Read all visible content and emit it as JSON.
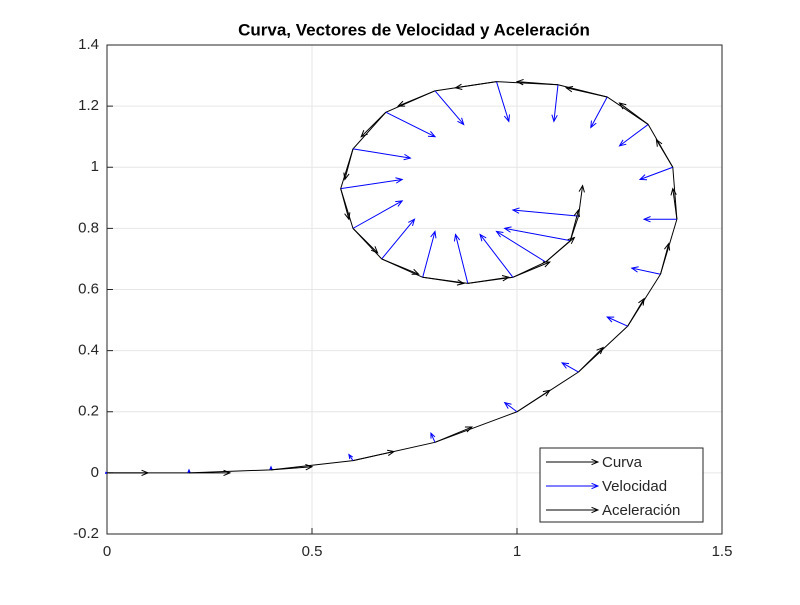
{
  "chart_data": {
    "type": "quiver",
    "title": "Curva, Vectores de Velocidad y Aceleración",
    "x": [
      0,
      0.2,
      0.4,
      0.6,
      0.8,
      1.0,
      1.15,
      1.27,
      1.35,
      1.39,
      1.38,
      1.32,
      1.22,
      1.1,
      0.95,
      0.8,
      0.68,
      0.6,
      0.57,
      0.6,
      0.67,
      0.77,
      0.88,
      0.99,
      1.07,
      1.13,
      1.15
    ],
    "y": [
      0,
      0.0,
      0.01,
      0.04,
      0.1,
      0.2,
      0.33,
      0.48,
      0.65,
      0.83,
      1.0,
      1.14,
      1.23,
      1.27,
      1.28,
      1.25,
      1.18,
      1.06,
      0.93,
      0.8,
      0.7,
      0.64,
      0.62,
      0.64,
      0.69,
      0.76,
      0.84
    ],
    "series": [
      {
        "name": "Curva",
        "color": "#000000"
      },
      {
        "name": "Velocidad",
        "color": "#0000ff",
        "u": [
          0,
          0,
          0,
          -0.01,
          -0.01,
          -0.03,
          -0.04,
          -0.05,
          -0.07,
          -0.08,
          -0.08,
          -0.07,
          -0.04,
          -0.01,
          0.03,
          0.07,
          0.12,
          0.14,
          0.15,
          0.12,
          0.08,
          0.03,
          -0.03,
          -0.08,
          -0.12,
          -0.16,
          -0.16
        ],
        "v": [
          0,
          0.01,
          0.01,
          0.02,
          0.03,
          0.03,
          0.03,
          0.03,
          0.02,
          0,
          -0.04,
          -0.07,
          -0.1,
          -0.12,
          -0.13,
          -0.11,
          -0.08,
          -0.03,
          0.03,
          0.09,
          0.13,
          0.15,
          0.16,
          0.14,
          0.1,
          0.04,
          0.02
        ]
      },
      {
        "name": "Aceleración",
        "color": "#000000",
        "u": [
          0.1,
          0.1,
          0.1,
          0.1,
          0.09,
          0.08,
          0.06,
          0.04,
          0.02,
          -0.01,
          -0.04,
          -0.07,
          -0.1,
          -0.1,
          -0.1,
          -0.09,
          -0.06,
          -0.02,
          0.02,
          0.06,
          0.09,
          0.1,
          0.1,
          0.09,
          0.07,
          0.02,
          0.01
        ],
        "v": [
          0,
          0,
          0.01,
          0.03,
          0.05,
          0.07,
          0.08,
          0.09,
          0.1,
          0.1,
          0.09,
          0.07,
          0.03,
          0.01,
          -0.02,
          -0.05,
          -0.08,
          -0.1,
          -0.1,
          -0.08,
          -0.05,
          -0.02,
          0.02,
          0.05,
          0.08,
          0.1,
          0.1
        ]
      }
    ],
    "xlim": [
      0,
      1.5
    ],
    "xticks": [
      0,
      0.5,
      1,
      1.5
    ],
    "ylim": [
      -0.2,
      1.4
    ],
    "yticks": [
      -0.2,
      0,
      0.2,
      0.4,
      0.6,
      0.8,
      1,
      1.2,
      1.4
    ],
    "grid": true,
    "legend": "southeast"
  }
}
